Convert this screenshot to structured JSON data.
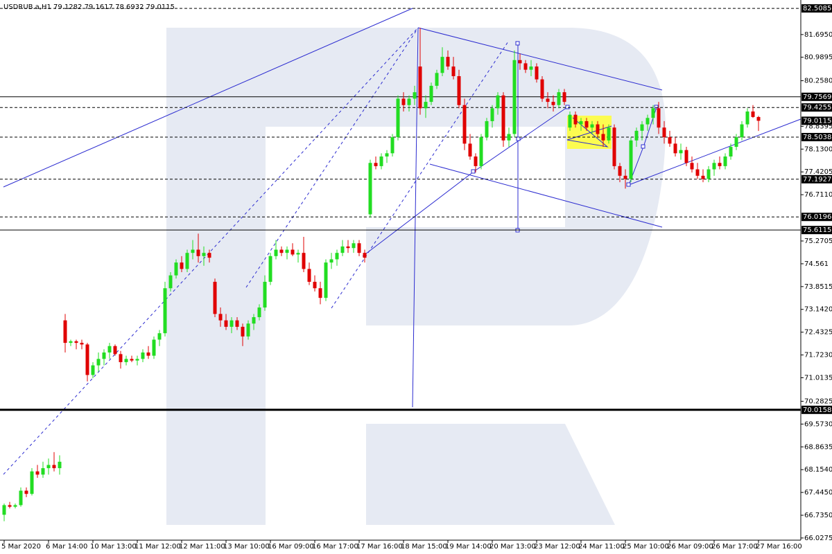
{
  "chart_data": {
    "type": "candlestick",
    "title": "USDRUB.a,H1  79.1282 79.1617 78.6932 79.0115",
    "up_color": "#22dd22",
    "down_color": "#e00000",
    "ylim": [
      65.96,
      82.77
    ],
    "yticks": [
      {
        "value": 81.695,
        "label": "81.6950"
      },
      80.9895,
      {
        "value": 80.258,
        "label": "80.2580"
      },
      78.8395,
      {
        "value": 78.13,
        "label": "78.1300"
      },
      77.4205,
      {
        "value": 76.711,
        "label": "76.7110"
      },
      75.2705,
      74.561,
      73.8515,
      {
        "value": 73.142,
        "label": "73.1420"
      },
      72.4325,
      {
        "value": 71.723,
        "label": "71.7230"
      },
      71.0135,
      70.2825,
      {
        "value": 69.573,
        "label": "69.5730"
      },
      68.8635,
      {
        "value": 68.154,
        "label": "68.1540"
      },
      {
        "value": 67.445,
        "label": "67.4450"
      },
      {
        "value": 66.735,
        "label": "66.7350"
      },
      66.0275
    ],
    "levels": [
      {
        "value": 82.5085,
        "style": "dashed"
      },
      {
        "value": 79.7569,
        "style": "solid"
      },
      {
        "value": 79.4255,
        "style": "dashed"
      },
      {
        "value": 78.5038,
        "style": "dashed"
      },
      {
        "value": 77.1927,
        "style": "dashed"
      },
      {
        "value": 76.0196,
        "style": "dashed"
      },
      {
        "value": 75.6115,
        "style": "solid"
      },
      {
        "value": 70.0158,
        "style": "thick"
      }
    ],
    "last_price": 79.0115,
    "categories": [
      "5 Mar 2020",
      null,
      null,
      null,
      null,
      null,
      null,
      null,
      "6 Mar 14:00",
      null,
      null,
      null,
      null,
      null,
      null,
      null,
      "10 Mar 13:00",
      null,
      null,
      null,
      null,
      null,
      null,
      null,
      "11 Mar 12:00",
      null,
      null,
      null,
      null,
      null,
      null,
      null,
      "12 Mar 11:00",
      null,
      null,
      null,
      null,
      null,
      null,
      null,
      "13 Mar 10:00",
      null,
      null,
      null,
      null,
      null,
      null,
      null,
      "16 Mar 09:00",
      null,
      null,
      null,
      null,
      null,
      null,
      null,
      "16 Mar 17:00",
      null,
      null,
      null,
      null,
      null,
      null,
      null,
      "17 Mar 16:00",
      null,
      null,
      null,
      null,
      null,
      null,
      null,
      "18 Mar 15:00",
      null,
      null,
      null,
      null,
      null,
      null,
      null,
      "19 Mar 14:00",
      null,
      null,
      null,
      null,
      null,
      null,
      null,
      "20 Mar 13:00",
      null,
      null,
      null,
      null,
      null,
      null,
      null,
      "23 Mar 12:00",
      null,
      null,
      null,
      null,
      null,
      null,
      null,
      "24 Mar 11:00",
      null,
      null,
      null,
      null,
      null,
      null,
      null,
      "25 Mar 10:00",
      null,
      null,
      null,
      null,
      null,
      null,
      null,
      "26 Mar 09:00",
      null,
      null,
      null,
      null,
      null,
      null,
      null,
      "26 Mar 17:00",
      null,
      null,
      null,
      null,
      null,
      null,
      null,
      "27 Mar 16:00"
    ],
    "ohlc": [
      [
        66.75,
        67.1,
        66.55,
        67.05
      ],
      [
        67.05,
        67.15,
        66.95,
        67.0
      ],
      [
        67.0,
        67.1,
        66.95,
        67.05
      ],
      [
        67.05,
        67.6,
        67.0,
        67.5
      ],
      [
        67.5,
        67.6,
        67.3,
        67.4
      ],
      [
        67.4,
        68.2,
        67.35,
        68.1
      ],
      [
        68.1,
        68.3,
        67.9,
        68.0
      ],
      [
        68.0,
        68.4,
        67.9,
        68.2
      ],
      [
        68.2,
        68.5,
        68.0,
        68.3
      ],
      [
        68.3,
        68.7,
        68.1,
        68.2
      ],
      [
        68.2,
        68.6,
        68.0,
        68.4
      ],
      [
        72.8,
        73.0,
        71.8,
        72.1
      ],
      [
        72.1,
        72.2,
        72.0,
        72.15
      ],
      [
        72.15,
        72.2,
        71.9,
        72.1
      ],
      [
        72.1,
        72.2,
        71.9,
        72.05
      ],
      [
        72.05,
        72.1,
        70.9,
        71.1
      ],
      [
        71.1,
        71.5,
        71.0,
        71.4
      ],
      [
        71.4,
        71.8,
        71.2,
        71.6
      ],
      [
        71.6,
        71.9,
        71.4,
        71.8
      ],
      [
        71.8,
        72.1,
        71.6,
        72.0
      ],
      [
        72.0,
        72.05,
        71.7,
        71.75
      ],
      [
        71.75,
        71.85,
        71.3,
        71.5
      ],
      [
        71.5,
        71.7,
        71.4,
        71.6
      ],
      [
        71.6,
        71.7,
        71.5,
        71.55
      ],
      [
        71.55,
        71.7,
        71.4,
        71.6
      ],
      [
        71.6,
        71.9,
        71.5,
        71.8
      ],
      [
        71.8,
        72.0,
        71.6,
        71.7
      ],
      [
        71.7,
        72.3,
        71.6,
        72.2
      ],
      [
        72.2,
        72.5,
        72.0,
        72.4
      ],
      [
        72.4,
        74.0,
        72.3,
        73.8
      ],
      [
        73.8,
        74.3,
        73.7,
        74.2
      ],
      [
        74.2,
        74.7,
        74.1,
        74.6
      ],
      [
        74.6,
        74.8,
        74.3,
        74.4
      ],
      [
        74.4,
        75.0,
        74.3,
        74.9
      ],
      [
        74.9,
        75.3,
        74.7,
        75.0
      ],
      [
        75.0,
        75.5,
        74.6,
        74.8
      ],
      [
        74.8,
        75.1,
        74.5,
        74.9
      ],
      [
        74.9,
        75.0,
        74.6,
        74.75
      ],
      [
        74.0,
        74.1,
        72.9,
        73.0
      ],
      [
        73.0,
        73.2,
        72.6,
        72.8
      ],
      [
        72.8,
        73.0,
        72.5,
        72.6
      ],
      [
        72.6,
        72.9,
        72.4,
        72.8
      ],
      [
        72.8,
        72.9,
        72.5,
        72.6
      ],
      [
        72.6,
        72.7,
        72.0,
        72.3
      ],
      [
        72.3,
        72.8,
        72.2,
        72.7
      ],
      [
        72.7,
        73.0,
        72.5,
        72.9
      ],
      [
        72.9,
        73.3,
        72.8,
        73.2
      ],
      [
        73.2,
        74.2,
        73.1,
        74.0
      ],
      [
        74.0,
        74.9,
        73.9,
        74.8
      ],
      [
        74.8,
        75.3,
        74.7,
        75.0
      ],
      [
        75.0,
        75.1,
        74.8,
        74.9
      ],
      [
        74.9,
        75.1,
        74.7,
        75.0
      ],
      [
        75.0,
        75.2,
        74.8,
        74.85
      ],
      [
        74.85,
        75.0,
        74.6,
        74.9
      ],
      [
        74.9,
        75.4,
        74.3,
        74.4
      ],
      [
        74.4,
        74.6,
        73.9,
        74.0
      ],
      [
        74.0,
        74.2,
        73.7,
        73.8
      ],
      [
        73.8,
        74.0,
        73.3,
        73.5
      ],
      [
        73.5,
        74.7,
        73.4,
        74.6
      ],
      [
        74.6,
        74.9,
        74.4,
        74.7
      ],
      [
        74.7,
        75.0,
        74.5,
        74.9
      ],
      [
        74.9,
        75.3,
        74.8,
        75.1
      ],
      [
        75.1,
        75.3,
        74.9,
        75.05
      ],
      [
        75.05,
        75.3,
        74.9,
        75.2
      ],
      [
        75.2,
        75.3,
        74.8,
        74.9
      ],
      [
        74.9,
        75.0,
        74.6,
        74.75
      ],
      [
        76.1,
        77.8,
        76.0,
        77.7
      ],
      [
        77.7,
        77.9,
        77.5,
        77.6
      ],
      [
        77.6,
        78.0,
        77.5,
        77.9
      ],
      [
        77.9,
        78.1,
        77.7,
        78.0
      ],
      [
        78.0,
        78.6,
        77.9,
        78.5
      ],
      [
        78.5,
        79.8,
        78.4,
        79.7
      ],
      [
        79.7,
        79.9,
        79.3,
        79.5
      ],
      [
        79.5,
        79.8,
        79.3,
        79.7
      ],
      [
        79.7,
        80.1,
        79.5,
        79.9
      ],
      [
        80.7,
        81.9,
        79.2,
        79.4
      ],
      [
        79.4,
        79.8,
        79.1,
        79.6
      ],
      [
        79.6,
        80.2,
        79.5,
        80.1
      ],
      [
        80.1,
        80.6,
        80.0,
        80.5
      ],
      [
        80.5,
        81.3,
        80.4,
        81.0
      ],
      [
        81.0,
        81.2,
        80.6,
        80.7
      ],
      [
        80.7,
        81.0,
        80.3,
        80.4
      ],
      [
        80.4,
        80.6,
        79.4,
        79.5
      ],
      [
        79.5,
        79.7,
        78.1,
        78.3
      ],
      [
        78.3,
        78.6,
        77.8,
        77.9
      ],
      [
        77.9,
        78.0,
        77.4,
        77.6
      ],
      [
        77.6,
        78.6,
        77.5,
        78.5
      ],
      [
        78.5,
        79.1,
        78.4,
        79.0
      ],
      [
        79.0,
        79.5,
        78.8,
        79.4
      ],
      [
        79.4,
        79.9,
        79.2,
        79.8
      ],
      [
        79.8,
        79.9,
        78.2,
        78.4
      ],
      [
        78.4,
        78.8,
        78.2,
        78.6
      ],
      [
        78.6,
        81.2,
        78.5,
        80.9
      ],
      [
        80.9,
        81.1,
        80.6,
        80.8
      ],
      [
        80.8,
        80.9,
        80.5,
        80.6
      ],
      [
        80.6,
        80.9,
        80.4,
        80.7
      ],
      [
        80.7,
        80.8,
        80.2,
        80.3
      ],
      [
        80.3,
        80.4,
        79.6,
        79.7
      ],
      [
        79.7,
        79.9,
        79.4,
        79.6
      ],
      [
        79.6,
        79.8,
        79.3,
        79.5
      ],
      [
        79.5,
        80.0,
        79.4,
        79.9
      ],
      [
        79.9,
        80.0,
        79.5,
        79.6
      ],
      [
        78.8,
        79.3,
        78.7,
        79.2
      ],
      [
        79.2,
        79.3,
        78.8,
        78.9
      ],
      [
        78.9,
        79.1,
        78.7,
        79.0
      ],
      [
        79.0,
        79.1,
        78.7,
        78.8
      ],
      [
        78.8,
        79.0,
        78.6,
        78.9
      ],
      [
        78.9,
        79.0,
        78.5,
        78.6
      ],
      [
        78.6,
        78.9,
        78.2,
        78.4
      ],
      [
        78.4,
        78.9,
        78.3,
        78.8
      ],
      [
        78.8,
        78.9,
        77.5,
        77.6
      ],
      [
        77.6,
        77.7,
        77.1,
        77.3
      ],
      [
        77.3,
        77.5,
        76.9,
        77.2
      ],
      [
        77.2,
        78.5,
        77.1,
        78.4
      ],
      [
        78.4,
        78.8,
        78.2,
        78.7
      ],
      [
        78.7,
        79.0,
        78.4,
        78.9
      ],
      [
        78.9,
        79.2,
        78.7,
        79.1
      ],
      [
        79.1,
        79.5,
        78.9,
        79.4
      ],
      [
        79.4,
        79.6,
        78.6,
        78.8
      ],
      [
        78.8,
        79.0,
        78.3,
        78.5
      ],
      [
        78.5,
        78.7,
        78.2,
        78.3
      ],
      [
        78.3,
        78.5,
        77.9,
        78.0
      ],
      [
        78.0,
        78.3,
        77.8,
        78.1
      ],
      [
        78.1,
        78.2,
        77.6,
        77.7
      ],
      [
        77.7,
        77.9,
        77.4,
        77.5
      ],
      [
        77.5,
        77.7,
        77.2,
        77.3
      ],
      [
        77.3,
        77.5,
        77.1,
        77.2
      ],
      [
        77.2,
        77.6,
        77.1,
        77.5
      ],
      [
        77.5,
        77.8,
        77.3,
        77.7
      ],
      [
        77.7,
        77.9,
        77.5,
        77.6
      ],
      [
        77.6,
        78.0,
        77.5,
        77.9
      ],
      [
        77.9,
        78.3,
        77.8,
        78.2
      ],
      [
        78.2,
        78.6,
        78.1,
        78.5
      ],
      [
        78.5,
        79.0,
        78.4,
        78.9
      ],
      [
        78.9,
        79.4,
        78.8,
        79.3
      ],
      [
        79.3,
        79.5,
        79.1,
        79.13
      ],
      [
        79.1282,
        79.1617,
        78.6932,
        79.0115
      ]
    ]
  }
}
